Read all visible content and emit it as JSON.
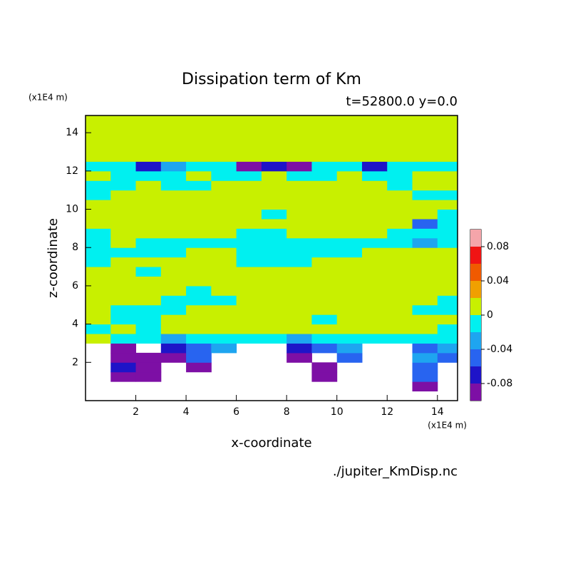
{
  "chart_data": {
    "type": "contour",
    "title": "Dissipation term of Km",
    "subtitle": "t=52800.0 y=0.0",
    "x_label": "x-coordinate",
    "y_label": "z-coordinate",
    "x_unit": "(x1E4 m)",
    "y_unit": "(x1E4 m)",
    "source": "./jupiter_KmDisp.nc",
    "xlim": [
      0,
      14.8
    ],
    "ylim": [
      0,
      14.9
    ],
    "xticks": [
      2,
      4,
      6,
      8,
      10,
      12,
      14
    ],
    "yticks": [
      2,
      4,
      6,
      8,
      10,
      12,
      14
    ],
    "x": [
      0.5,
      1.5,
      2.5,
      3.5,
      4.5,
      5.5,
      6.5,
      7.5,
      8.5,
      9.5,
      10.5,
      11.5,
      12.5,
      13.5,
      14.5
    ],
    "y": [
      0.25,
      0.75,
      1.25,
      1.75,
      2.25,
      2.75,
      3.25,
      3.75,
      4.25,
      4.75,
      5.25,
      5.75,
      6.25,
      6.75,
      7.25,
      7.75,
      8.25,
      8.75,
      9.25,
      9.75,
      10.25,
      10.75,
      11.25,
      11.75,
      12.25,
      12.75,
      13.25,
      13.75,
      14.25,
      14.75
    ],
    "z": [
      [
        null,
        null,
        null,
        null,
        null,
        null,
        null,
        null,
        null,
        null,
        null,
        null,
        null,
        null,
        null
      ],
      [
        null,
        null,
        null,
        null,
        null,
        null,
        null,
        null,
        null,
        null,
        null,
        null,
        null,
        -0.09,
        null
      ],
      [
        null,
        -0.09,
        -0.09,
        null,
        null,
        null,
        null,
        null,
        null,
        -0.09,
        null,
        null,
        null,
        -0.05,
        null
      ],
      [
        null,
        -0.07,
        -0.09,
        null,
        -0.09,
        null,
        null,
        null,
        null,
        -0.09,
        null,
        null,
        null,
        -0.05,
        null
      ],
      [
        null,
        -0.09,
        -0.09,
        -0.09,
        -0.05,
        null,
        null,
        null,
        -0.09,
        null,
        -0.05,
        null,
        null,
        -0.03,
        -0.05
      ],
      [
        null,
        -0.09,
        null,
        -0.07,
        -0.05,
        -0.03,
        null,
        null,
        -0.07,
        -0.05,
        -0.03,
        null,
        null,
        -0.05,
        -0.03
      ],
      [
        0.01,
        -0.01,
        -0.01,
        -0.03,
        -0.01,
        -0.01,
        -0.01,
        -0.01,
        -0.03,
        -0.01,
        -0.01,
        -0.01,
        -0.01,
        -0.01,
        -0.01
      ],
      [
        -0.01,
        0.01,
        -0.01,
        0.01,
        0.01,
        0.01,
        0.01,
        0.01,
        0.01,
        0.01,
        0.01,
        0.01,
        0.01,
        0.01,
        -0.01
      ],
      [
        0.01,
        -0.01,
        -0.01,
        0.01,
        0.01,
        0.01,
        0.01,
        0.01,
        0.01,
        -0.01,
        0.01,
        0.01,
        0.01,
        0.01,
        0.01
      ],
      [
        0.01,
        -0.01,
        -0.01,
        -0.01,
        0.01,
        0.01,
        0.01,
        0.01,
        0.01,
        0.01,
        0.01,
        0.01,
        0.01,
        -0.01,
        -0.01
      ],
      [
        0.01,
        0.01,
        0.01,
        -0.01,
        -0.01,
        -0.01,
        0.01,
        0.01,
        0.01,
        0.01,
        0.01,
        0.01,
        0.01,
        0.01,
        -0.01
      ],
      [
        0.01,
        0.01,
        0.01,
        0.01,
        -0.01,
        0.01,
        0.01,
        0.01,
        0.01,
        0.01,
        0.01,
        0.01,
        0.01,
        0.01,
        0.01
      ],
      [
        0.01,
        0.01,
        0.01,
        0.01,
        0.01,
        0.01,
        0.01,
        0.01,
        0.01,
        0.01,
        0.01,
        0.01,
        0.01,
        0.01,
        0.01
      ],
      [
        0.01,
        0.01,
        -0.01,
        0.01,
        0.01,
        0.01,
        0.01,
        0.01,
        0.01,
        0.01,
        0.01,
        0.01,
        0.01,
        0.01,
        0.01
      ],
      [
        -0.01,
        0.01,
        0.01,
        0.01,
        0.01,
        0.01,
        -0.01,
        -0.01,
        -0.01,
        0.01,
        0.01,
        0.01,
        0.01,
        0.01,
        0.01
      ],
      [
        -0.01,
        -0.01,
        -0.01,
        -0.01,
        0.01,
        0.01,
        -0.01,
        -0.01,
        -0.01,
        -0.01,
        -0.01,
        0.01,
        0.01,
        0.01,
        0.01
      ],
      [
        -0.01,
        0.01,
        -0.01,
        -0.01,
        -0.01,
        -0.01,
        -0.01,
        -0.01,
        -0.01,
        -0.01,
        -0.01,
        -0.01,
        -0.01,
        -0.03,
        -0.01
      ],
      [
        -0.01,
        0.01,
        0.01,
        0.01,
        0.01,
        0.01,
        -0.01,
        -0.01,
        0.01,
        0.01,
        0.01,
        0.01,
        -0.01,
        -0.01,
        -0.01
      ],
      [
        0.01,
        0.01,
        0.01,
        0.01,
        0.01,
        0.01,
        0.01,
        0.01,
        0.01,
        0.01,
        0.01,
        0.01,
        0.01,
        -0.05,
        -0.01
      ],
      [
        0.01,
        0.01,
        0.01,
        0.01,
        0.01,
        0.01,
        0.01,
        -0.01,
        0.01,
        0.01,
        0.01,
        0.01,
        0.01,
        0.01,
        -0.01
      ],
      [
        0.01,
        0.01,
        0.01,
        0.01,
        0.01,
        0.01,
        0.01,
        0.01,
        0.01,
        0.01,
        0.01,
        0.01,
        0.01,
        0.01,
        0.01
      ],
      [
        -0.01,
        0.01,
        0.01,
        0.01,
        0.01,
        0.01,
        0.01,
        0.01,
        0.01,
        0.01,
        0.01,
        0.01,
        0.01,
        -0.01,
        -0.01
      ],
      [
        -0.01,
        -0.01,
        0.01,
        -0.01,
        -0.01,
        0.01,
        0.01,
        0.01,
        0.01,
        0.01,
        0.01,
        0.01,
        -0.01,
        0.01,
        0.01
      ],
      [
        0.01,
        -0.01,
        -0.01,
        -0.01,
        0.01,
        -0.01,
        -0.01,
        0.01,
        -0.01,
        -0.01,
        0.01,
        -0.01,
        -0.01,
        0.01,
        0.01
      ],
      [
        -0.01,
        -0.01,
        -0.07,
        -0.03,
        -0.01,
        -0.01,
        -0.09,
        -0.07,
        -0.09,
        -0.01,
        -0.01,
        -0.07,
        -0.01,
        -0.01,
        -0.01
      ],
      [
        0.01,
        0.01,
        0.01,
        0.01,
        0.01,
        0.01,
        0.01,
        0.01,
        0.01,
        0.01,
        0.01,
        0.01,
        0.01,
        0.01,
        0.01
      ],
      [
        0.01,
        0.01,
        0.01,
        0.01,
        0.01,
        0.01,
        0.01,
        0.01,
        0.01,
        0.01,
        0.01,
        0.01,
        0.01,
        0.01,
        0.01
      ],
      [
        0.01,
        0.01,
        0.01,
        0.01,
        0.01,
        0.01,
        0.01,
        0.01,
        0.01,
        0.01,
        0.01,
        0.01,
        0.01,
        0.01,
        0.01
      ],
      [
        0.01,
        0.01,
        0.01,
        0.01,
        0.01,
        0.01,
        0.01,
        0.01,
        0.01,
        0.01,
        0.01,
        0.01,
        0.01,
        0.01,
        0.01
      ],
      [
        0.01,
        0.01,
        0.01,
        0.01,
        0.01,
        0.01,
        0.01,
        0.01,
        0.01,
        0.01,
        0.01,
        0.01,
        0.01,
        0.01,
        0.01
      ]
    ],
    "levels": [
      -0.1,
      -0.08,
      -0.06,
      -0.04,
      -0.02,
      0,
      0.02,
      0.04,
      0.06,
      0.08,
      0.1
    ],
    "colors": [
      "#7d0fa5",
      "#1e14c8",
      "#2864f0",
      "#1ea5f0",
      "#00f0f0",
      "#c8f000",
      "#f0a000",
      "#f05a00",
      "#f01414",
      "#f5a5aa"
    ],
    "colorbar_ticks": [
      -0.08,
      -0.04,
      0,
      0.04,
      0.08
    ]
  }
}
